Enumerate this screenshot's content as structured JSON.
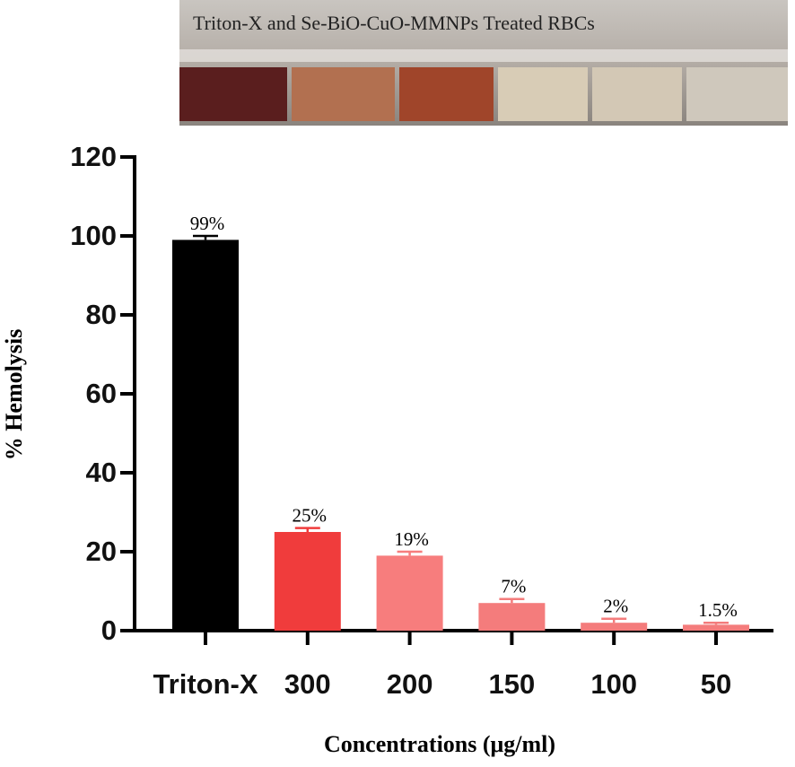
{
  "image_caption": "Triton-X and Se-BiO-CuO-MMNPs Treated RBCs",
  "chart_data": {
    "type": "bar",
    "x_label": "Concentrations (μg/ml)",
    "y_label": "% Hemolysis",
    "categories": [
      "Triton-X",
      "300",
      "200",
      "150",
      "100",
      "50"
    ],
    "values": [
      99,
      25,
      19,
      7,
      2,
      1.5
    ],
    "errors": [
      1,
      1,
      1,
      1,
      1,
      0.5
    ],
    "value_labels": [
      "99%",
      "25%",
      "19%",
      "7%",
      "2%",
      "1.5%"
    ],
    "colors": [
      "#000000",
      "#f03c3c",
      "#f77d7d",
      "#f47c7c",
      "#f47c7c",
      "#f47c7c"
    ],
    "ylim": [
      0,
      120
    ],
    "yticks": [
      0,
      20,
      40,
      60,
      80,
      100,
      120
    ],
    "grid": false
  }
}
